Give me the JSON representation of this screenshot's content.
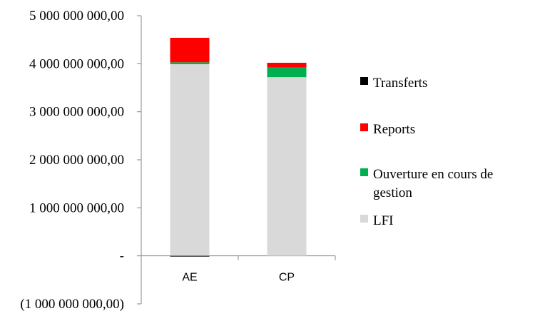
{
  "chart_data": {
    "type": "bar",
    "stacked": true,
    "categories": [
      "AE",
      "CP"
    ],
    "series": [
      {
        "name": "LFI",
        "color": "#d9d9d9",
        "values": [
          3990000000,
          3720000000
        ]
      },
      {
        "name": "Ouverture en cours de gestion",
        "color": "#00b050",
        "values": [
          40000000,
          200000000
        ]
      },
      {
        "name": "Reports",
        "color": "#ff0000",
        "values": [
          510000000,
          100000000
        ]
      },
      {
        "name": "Transferts",
        "color": "#000000",
        "values": [
          -15000000,
          0
        ]
      }
    ],
    "ylim": [
      -1000000000,
      5000000000
    ],
    "yticks": [
      5000000000,
      4000000000,
      3000000000,
      2000000000,
      1000000000,
      0,
      -1000000000
    ],
    "ytick_labels": [
      "5 000 000 000,00",
      "4 000 000 000,00",
      "3 000 000 000,00",
      "2 000 000 000,00",
      "1 000 000 000,00",
      "-",
      "(1 000 000 000,00)"
    ],
    "legend": {
      "position": "right",
      "order": [
        "Transferts",
        "Reports",
        "Ouverture en cours de gestion",
        "LFI"
      ]
    },
    "title": "",
    "xlabel": "",
    "ylabel": "",
    "grid": false
  }
}
